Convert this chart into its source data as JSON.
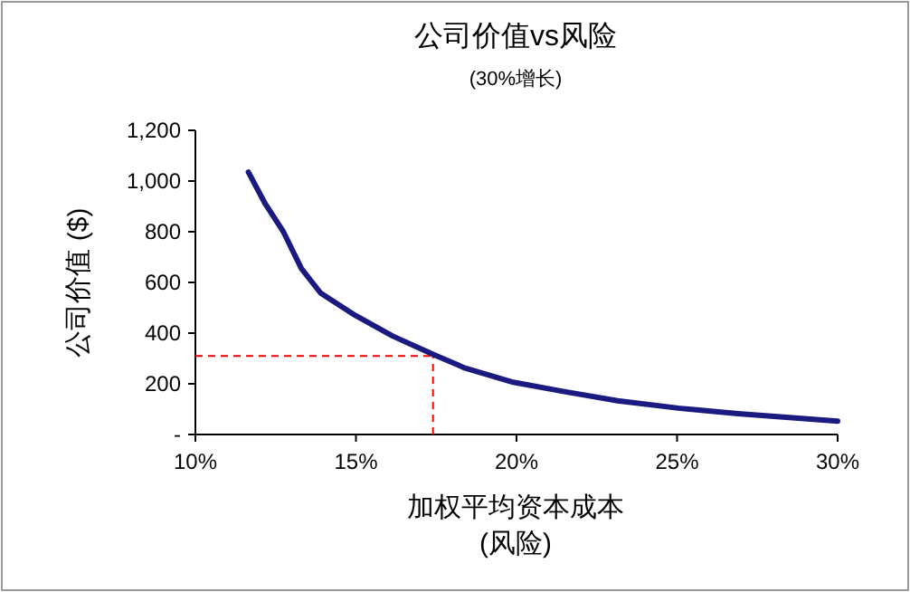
{
  "chart_data": {
    "type": "line",
    "title": "公司价值vs风险",
    "subtitle": "(30%增长)",
    "xlabel": "加权平均资本成本\n(风险)",
    "ylabel": "公司价值 ($)",
    "x": [
      11.65,
      12.18,
      12.74,
      13.3,
      13.9,
      14.98,
      16.15,
      17.42,
      18.4,
      19.9,
      21.45,
      23.15,
      25.04,
      26.9,
      30
    ],
    "series": [
      {
        "color": "#1a1a80",
        "values": [
          1035,
          909,
          800,
          655,
          558,
          470,
          388,
          315,
          262,
          206,
          170,
          133,
          104,
          82,
          53
        ]
      }
    ],
    "xlim": [
      10,
      30
    ],
    "ylim": [
      0,
      1200
    ],
    "xticks": [
      {
        "value": 10,
        "label": "10%"
      },
      {
        "value": 15,
        "label": "15%"
      },
      {
        "value": 20,
        "label": "20%"
      },
      {
        "value": 25,
        "label": "25%"
      },
      {
        "value": 30,
        "label": "30%"
      }
    ],
    "yticks": [
      {
        "value": 0,
        "label": "-"
      },
      {
        "value": 200,
        "label": "200"
      },
      {
        "value": 400,
        "label": "400"
      },
      {
        "value": 600,
        "label": "600"
      },
      {
        "value": 800,
        "label": "800"
      },
      {
        "value": 1000,
        "label": "1,000"
      },
      {
        "value": 1200,
        "label": "1,200"
      }
    ],
    "ref_lines": [
      {
        "axis": "y",
        "value": 310,
        "color": "#ff0000",
        "line_style": "dashed"
      },
      {
        "axis": "x",
        "value": 17.4,
        "color": "#ff0000",
        "line_style": "dashed"
      }
    ],
    "grid": false,
    "marker": "none",
    "line_style": "solid"
  }
}
